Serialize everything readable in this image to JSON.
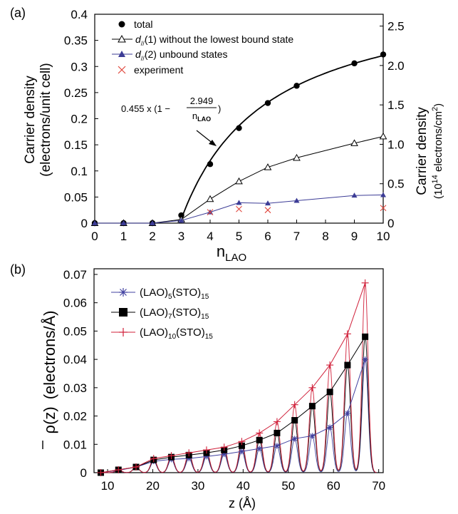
{
  "chart_data": [
    {
      "type": "line",
      "panel": "(a)",
      "xlabel": "n",
      "xlabel_sub": "LAO",
      "ylabel_line1": "Carrier density",
      "ylabel_line2": "(electrons/unit cell)",
      "y2label_line1": "Carrier density",
      "y2label_pre": "(10",
      "y2label_sup": "14",
      "y2label_mid": " electrons/cm",
      "y2label_sup2": "2",
      "y2label_post": ")",
      "xlim": [
        0,
        10
      ],
      "ylim": [
        0,
        0.4
      ],
      "y2lim": [
        0,
        2.65
      ],
      "xticks": [
        0,
        1,
        2,
        3,
        4,
        5,
        6,
        7,
        8,
        9,
        10
      ],
      "yticks": [
        "0",
        "0.05",
        "0.1",
        "0.15",
        "0.2",
        "0.25",
        "0.3",
        "0.35",
        "0.4"
      ],
      "y2ticks": [
        {
          "label": "0",
          "v": 0
        },
        {
          "label": "0.5",
          "v": 0.5
        },
        {
          "label": "1.0",
          "v": 1.0
        },
        {
          "label": "1.5",
          "v": 1.5
        },
        {
          "label": "2.0",
          "v": 2.0
        },
        {
          "label": "2.5",
          "v": 2.5
        }
      ],
      "fit_curve": {
        "label_coef": "0.455 x (1 −",
        "label_num": "2.949",
        "label_den": "n",
        "label_den_sub": "LAO",
        "label_close": ")",
        "a": 0.455,
        "b": 2.949,
        "x_range": [
          2.949,
          10
        ],
        "color": "#000000"
      },
      "series": [
        {
          "name": "total",
          "marker": "filled-circle",
          "color": "#000000",
          "line": false,
          "x": [
            0,
            1,
            2,
            3,
            4,
            5,
            6,
            7,
            9,
            10
          ],
          "y": [
            0,
            0,
            0,
            0.015,
            0.113,
            0.182,
            0.23,
            0.263,
            0.306,
            0.323
          ]
        },
        {
          "name_pre": "d",
          "name_sub": "//",
          "name_post": "(1) without the lowest bound state",
          "marker": "open-triangle",
          "color": "#000000",
          "line": true,
          "x": [
            0,
            1,
            2,
            3,
            4,
            5,
            6,
            7,
            9,
            10
          ],
          "y": [
            0,
            0,
            0,
            0.007,
            0.046,
            0.08,
            0.107,
            0.125,
            0.153,
            0.166
          ]
        },
        {
          "name_pre": "d",
          "name_sub": "//",
          "name_post": "(2) unbound states",
          "marker": "filled-triangle",
          "color": "#3c3c96",
          "line": true,
          "x": [
            0,
            1,
            2,
            3,
            4,
            5,
            6,
            7,
            9,
            10
          ],
          "y": [
            0,
            0,
            0,
            0.005,
            0.021,
            0.039,
            0.038,
            0.043,
            0.053,
            0.054
          ]
        },
        {
          "name": "experiment",
          "marker": "cross",
          "color": "#e0463c",
          "line": false,
          "x": [
            4,
            5,
            6,
            10
          ],
          "y": [
            0.021,
            0.027,
            0.025,
            0.029
          ]
        }
      ]
    },
    {
      "type": "line",
      "panel": "(b)",
      "xlabel": "z (Å)",
      "ylabel_sym": "ρ(z)",
      "ylabel_unit": "(electrons/Å)",
      "xlim": [
        7,
        71
      ],
      "ylim": [
        0,
        0.072
      ],
      "xticks": [
        10,
        20,
        30,
        40,
        50,
        60,
        70
      ],
      "yticks": [
        "0",
        "0.01",
        "0.02",
        "0.03",
        "0.04",
        "0.05",
        "0.06",
        "0.07"
      ],
      "peak_positions": [
        8.5,
        12.4,
        16.3,
        20.2,
        24.1,
        28.0,
        31.9,
        35.8,
        39.7,
        43.6,
        47.5,
        51.4,
        55.3,
        59.2,
        63.1,
        67.0
      ],
      "series": [
        {
          "label_a": "(LAO)",
          "sub_a": "5",
          "label_b": "(STO)",
          "sub_b": "15",
          "marker": "asterisk",
          "color": "#4040a0",
          "peaks": [
            0,
            0.0008,
            0.002,
            0.004,
            0.0047,
            0.005,
            0.0057,
            0.0065,
            0.0075,
            0.0085,
            0.0095,
            0.012,
            0.013,
            0.016,
            0.021,
            0.04
          ]
        },
        {
          "label_a": "(LAO)",
          "sub_a": "7",
          "label_b": "(STO)",
          "sub_b": "15",
          "marker": "filled-square",
          "color": "#000000",
          "peaks": [
            0,
            0.001,
            0.002,
            0.0045,
            0.0055,
            0.0062,
            0.007,
            0.008,
            0.0095,
            0.0115,
            0.014,
            0.0185,
            0.0235,
            0.0285,
            0.038,
            0.048
          ]
        },
        {
          "label_a": "(LAO)",
          "sub_a": "10",
          "label_b": "(STO)",
          "sub_b": "15",
          "marker": "plus",
          "color": "#d0203a",
          "peaks": [
            0,
            0.001,
            0.002,
            0.005,
            0.006,
            0.007,
            0.008,
            0.009,
            0.011,
            0.014,
            0.018,
            0.024,
            0.03,
            0.038,
            0.049,
            0.067
          ]
        }
      ]
    }
  ]
}
